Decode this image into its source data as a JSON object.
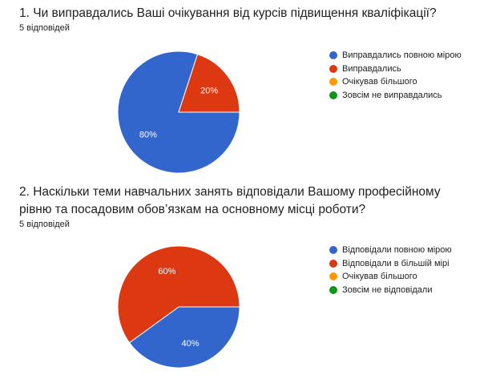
{
  "questions": [
    {
      "title": "1. Чи виправдались Ваші очікування від курсів підвищення кваліфікації?",
      "responses": "5 відповідей"
    },
    {
      "title": "2. Наскільки теми навчальних занять відповідали Вашому  професійному рівню та посадовим обов’язкам на основному місці роботи?",
      "responses": "5 відповідей"
    }
  ],
  "chart_data": [
    {
      "type": "pie",
      "title": "1. Чи виправдались Ваші очікування від курсів підвищення кваліфікації?",
      "categories": [
        "Виправдались повною мірою",
        "Виправдались",
        "Очікував більшого",
        "Зовсім не виправдались"
      ],
      "values": [
        80,
        20,
        0,
        0
      ],
      "labels": [
        "80%",
        "20%",
        "",
        ""
      ],
      "colors": [
        "#3366cc",
        "#dc3912",
        "#ff9900",
        "#109618"
      ],
      "legend": "right"
    },
    {
      "type": "pie",
      "title": "2. Наскільки теми навчальних занять відповідали Вашому  професійному рівню та посадовим обов’язкам на основному місці роботи?",
      "categories": [
        "Відповідали повною мірою",
        "Відповідали в більшій мірі",
        "Очікував більшого",
        "Зовсім не відповідали"
      ],
      "values": [
        40,
        60,
        0,
        0
      ],
      "labels": [
        "40%",
        "60%",
        "",
        ""
      ],
      "colors": [
        "#3366cc",
        "#dc3912",
        "#ff9900",
        "#109618"
      ],
      "legend": "right"
    }
  ]
}
